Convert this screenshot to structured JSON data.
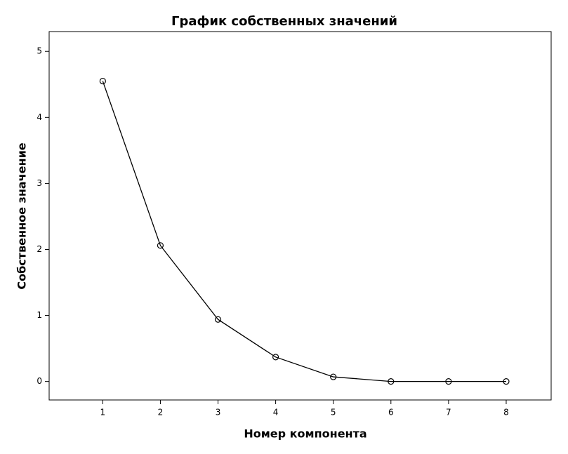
{
  "chart_data": {
    "type": "line",
    "title": "График собственных значений",
    "x_label": "Номер компонента",
    "y_label": "Собственное значение",
    "x": [
      1,
      2,
      3,
      4,
      5,
      6,
      7,
      8
    ],
    "values": [
      4.55,
      2.06,
      0.94,
      0.37,
      0.07,
      0.0,
      0.0,
      0.0
    ],
    "color": "#000000",
    "xlim": [
      0.07,
      8.78
    ],
    "xticks": [
      1,
      2,
      3,
      4,
      5,
      6,
      7,
      8
    ],
    "ylim": [
      -0.28,
      5.3
    ],
    "yticks": [
      0,
      1,
      2,
      3,
      4,
      5
    ],
    "grid": false
  }
}
